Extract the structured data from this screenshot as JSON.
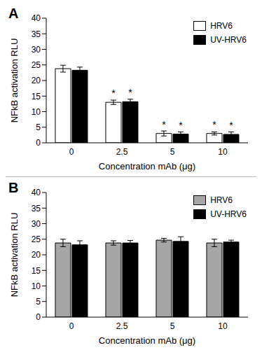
{
  "chart_data": [
    {
      "type": "bar",
      "title": "A",
      "x_label": "Concentration mAb (μg)",
      "y_label": "NFkB activation RLU",
      "categories": [
        "0",
        "2.5",
        "5",
        "10"
      ],
      "ylim": [
        0,
        40
      ],
      "yticks": [
        0,
        5,
        10,
        15,
        20,
        25,
        30,
        35,
        40
      ],
      "grid": false,
      "legend": "upper right",
      "series": [
        {
          "name": "HRV6",
          "color": "#ffffff",
          "values": [
            23.8,
            13.0,
            3.0,
            3.0
          ],
          "errors": [
            1.1,
            0.7,
            0.8,
            0.5
          ],
          "annotations": [
            null,
            "*",
            "*",
            "*"
          ]
        },
        {
          "name": "UV-HRV6",
          "color": "#000000",
          "values": [
            23.3,
            13.2,
            2.8,
            2.7
          ],
          "errors": [
            1.0,
            0.8,
            0.7,
            0.8
          ],
          "annotations": [
            null,
            "*",
            "*",
            "*"
          ]
        }
      ]
    },
    {
      "type": "bar",
      "title": "B",
      "x_label": "Concentration mAb (μg)",
      "y_label": "NFkB activation RLU",
      "categories": [
        "0",
        "2.5",
        "5",
        "10"
      ],
      "ylim": [
        0,
        40
      ],
      "yticks": [
        0,
        5,
        10,
        15,
        20,
        25,
        30,
        35,
        40
      ],
      "grid": false,
      "legend": "upper right",
      "series": [
        {
          "name": "HRV6",
          "color": "#a6a6a6",
          "values": [
            23.8,
            23.8,
            24.7,
            23.8
          ],
          "errors": [
            1.2,
            0.7,
            0.6,
            1.2
          ]
        },
        {
          "name": "UV-HRV6",
          "color": "#000000",
          "values": [
            23.2,
            23.8,
            24.3,
            24.1
          ],
          "errors": [
            1.3,
            0.8,
            1.5,
            0.6
          ]
        }
      ]
    }
  ]
}
